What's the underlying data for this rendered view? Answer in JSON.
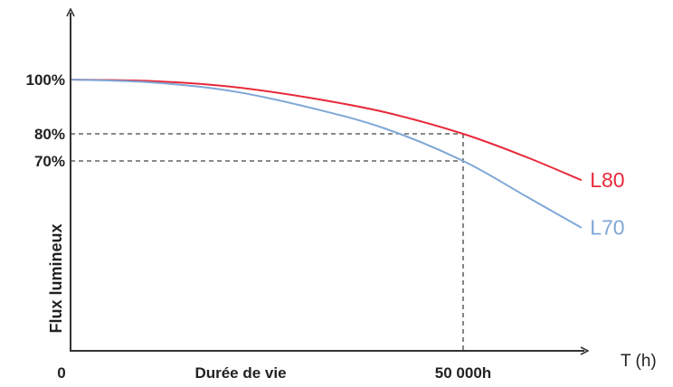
{
  "chart_data": {
    "type": "line",
    "xlabel": "T (h)",
    "ylabel": "Flux lumineux",
    "x_tick_labels": {
      "origin": "0",
      "middle": "Durée de vie",
      "marker": "50 000h"
    },
    "y_tick_labels": [
      "100%",
      "80%",
      "70%"
    ],
    "xlim": [
      0,
      65000
    ],
    "ylim": [
      0,
      100
    ],
    "reference_x": 50000,
    "reference_levels": [
      80,
      70
    ],
    "grid": false,
    "legend": "inline labels at line ends",
    "series": [
      {
        "name": "L80",
        "color": "#e8293a",
        "x": [
          0,
          10000,
          20000,
          30000,
          40000,
          50000,
          58000,
          65000
        ],
        "y": [
          100,
          99.5,
          97.5,
          93.5,
          88,
          80,
          71.5,
          63
        ]
      },
      {
        "name": "L70",
        "color": "#7fa7d6",
        "x": [
          0,
          10000,
          20000,
          30000,
          40000,
          50000,
          58000,
          65000
        ],
        "y": [
          100,
          99,
          96,
          90,
          82,
          70,
          57,
          45.5
        ]
      }
    ]
  }
}
